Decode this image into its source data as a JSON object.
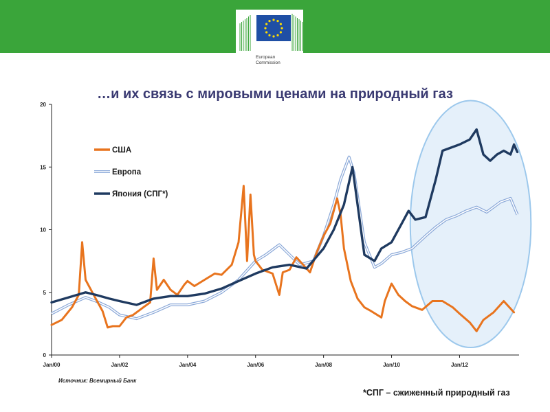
{
  "header": {
    "logo_text": [
      "European",
      "Commission"
    ],
    "brand_color": "#3aa53a",
    "flag_color": "#1f4fa5",
    "star_color": "#ffdd00"
  },
  "title": "…и их связь с мировыми ценами на природный газ",
  "source": "Источник: Всемирный Банк",
  "footnote": "*СПГ – сжиженный природный газ",
  "chart_data": {
    "type": "line",
    "title": "…и их связь с мировыми ценами на природный газ",
    "xlabel": "",
    "ylabel": "",
    "xlim": [
      2000.0,
      2013.75
    ],
    "ylim": [
      0,
      20
    ],
    "yticks": [
      0,
      5,
      10,
      15,
      20
    ],
    "xticks": [
      "Jan/00",
      "Jan/02",
      "Jan/04",
      "Jan/06",
      "Jan/08",
      "Jan/10",
      "Jan/12"
    ],
    "legend_position": "upper-left",
    "grid": false,
    "series": [
      {
        "name": "США",
        "color": "#e8741e",
        "style": "solid",
        "x": [
          2000.0,
          2000.3,
          2000.6,
          2000.8,
          2000.9,
          2001.0,
          2001.2,
          2001.5,
          2001.65,
          2001.8,
          2002.0,
          2002.2,
          2002.4,
          2002.7,
          2002.9,
          2003.0,
          2003.1,
          2003.3,
          2003.5,
          2003.7,
          2003.9,
          2004.0,
          2004.2,
          2004.5,
          2004.8,
          2005.0,
          2005.3,
          2005.5,
          2005.65,
          2005.75,
          2005.85,
          2005.95,
          2006.0,
          2006.2,
          2006.5,
          2006.7,
          2006.8,
          2007.0,
          2007.2,
          2007.4,
          2007.6,
          2007.8,
          2008.0,
          2008.2,
          2008.4,
          2008.5,
          2008.6,
          2008.8,
          2009.0,
          2009.2,
          2009.4,
          2009.7,
          2009.8,
          2010.0,
          2010.2,
          2010.4,
          2010.6,
          2010.9,
          2011.2,
          2011.5,
          2011.8,
          2012.0,
          2012.3,
          2012.5,
          2012.7,
          2013.0,
          2013.3,
          2013.6
        ],
        "values": [
          2.4,
          2.8,
          3.8,
          4.8,
          9.0,
          6.0,
          5.0,
          3.5,
          2.2,
          2.3,
          2.3,
          3.0,
          3.2,
          3.8,
          4.2,
          7.7,
          5.2,
          6.0,
          5.2,
          4.8,
          5.6,
          5.9,
          5.5,
          6.0,
          6.5,
          6.4,
          7.2,
          9.0,
          13.5,
          7.5,
          12.8,
          8.0,
          7.5,
          6.8,
          6.5,
          4.8,
          6.6,
          6.8,
          7.8,
          7.2,
          6.6,
          8.2,
          9.5,
          10.5,
          12.5,
          11.2,
          8.5,
          5.9,
          4.5,
          3.8,
          3.5,
          3.0,
          4.3,
          5.7,
          4.8,
          4.3,
          3.9,
          3.6,
          4.3,
          4.3,
          3.8,
          3.3,
          2.6,
          1.9,
          2.8,
          3.4,
          4.3,
          3.4
        ]
      },
      {
        "name": "Европа",
        "color": "#8aa8d8",
        "style": "double",
        "x": [
          2000.0,
          2000.5,
          2001.0,
          2001.3,
          2001.7,
          2002.0,
          2002.5,
          2003.0,
          2003.5,
          2004.0,
          2004.5,
          2005.0,
          2005.5,
          2006.0,
          2006.3,
          2006.7,
          2007.0,
          2007.3,
          2007.7,
          2008.0,
          2008.3,
          2008.5,
          2008.75,
          2008.9,
          2009.2,
          2009.5,
          2009.7,
          2010.0,
          2010.3,
          2010.6,
          2011.0,
          2011.3,
          2011.6,
          2011.9,
          2012.2,
          2012.5,
          2012.8,
          2013.0,
          2013.2,
          2013.5,
          2013.7
        ],
        "values": [
          3.3,
          4.0,
          4.6,
          4.3,
          3.8,
          3.2,
          2.9,
          3.4,
          4.0,
          4.0,
          4.3,
          5.0,
          6.0,
          7.5,
          8.0,
          8.8,
          8.0,
          7.2,
          7.5,
          9.5,
          12.0,
          14.0,
          15.8,
          14.5,
          9.0,
          7.0,
          7.3,
          8.0,
          8.2,
          8.5,
          9.5,
          10.2,
          10.8,
          11.1,
          11.5,
          11.8,
          11.4,
          11.8,
          12.2,
          12.5,
          11.2
        ]
      },
      {
        "name": "Япония (СПГ*)",
        "color": "#1f3a60",
        "style": "solid",
        "x": [
          2000.0,
          2000.5,
          2001.0,
          2001.3,
          2001.7,
          2002.0,
          2002.5,
          2003.0,
          2003.5,
          2004.0,
          2004.5,
          2005.0,
          2005.5,
          2006.0,
          2006.5,
          2007.0,
          2007.5,
          2008.0,
          2008.3,
          2008.6,
          2008.85,
          2009.0,
          2009.2,
          2009.5,
          2009.7,
          2010.0,
          2010.3,
          2010.5,
          2010.7,
          2011.0,
          2011.3,
          2011.5,
          2011.7,
          2012.0,
          2012.3,
          2012.5,
          2012.7,
          2012.9,
          2013.1,
          2013.3,
          2013.5,
          2013.6,
          2013.7
        ],
        "values": [
          4.2,
          4.6,
          5.0,
          4.8,
          4.5,
          4.3,
          4.0,
          4.5,
          4.7,
          4.7,
          4.9,
          5.3,
          5.9,
          6.5,
          7.0,
          7.2,
          6.9,
          8.5,
          10.0,
          12.0,
          15.0,
          12.0,
          8.0,
          7.5,
          8.5,
          9.0,
          10.5,
          11.5,
          10.8,
          11.0,
          14.0,
          16.3,
          16.5,
          16.8,
          17.2,
          18.0,
          16.0,
          15.5,
          16.0,
          16.3,
          16.0,
          16.8,
          16.2
        ]
      }
    ],
    "highlight": {
      "shape": "ellipse",
      "x_range": [
        2010.55,
        2014.1
      ],
      "y_range": [
        0.6,
        20.3
      ]
    }
  }
}
